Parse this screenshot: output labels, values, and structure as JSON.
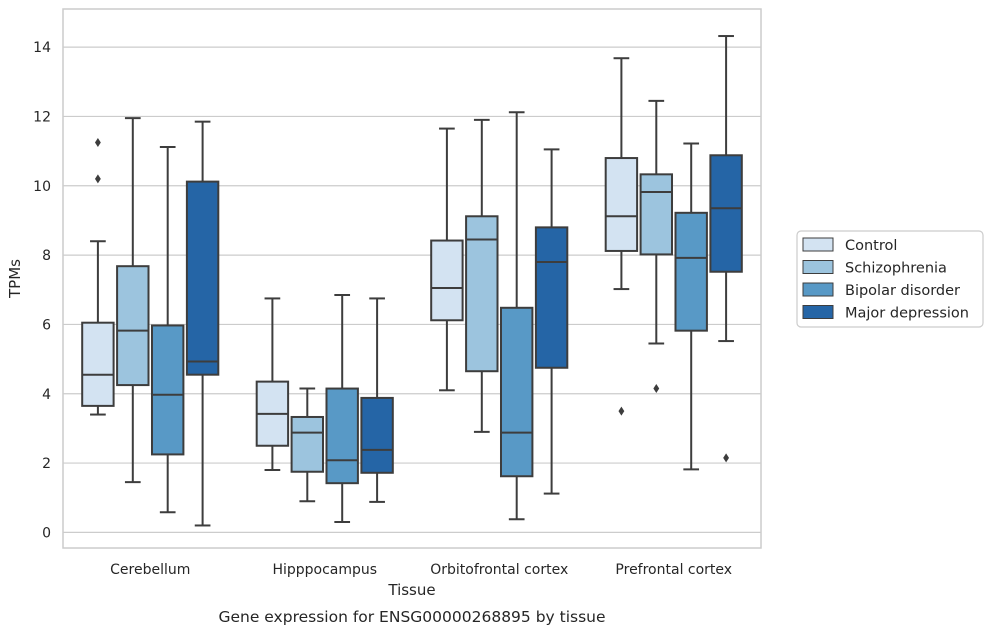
{
  "chart_data": {
    "type": "box",
    "caption": "Gene expression for ENSG00000268895 by tissue",
    "xlabel": "Tissue",
    "ylabel": "TPMs",
    "ylim": [
      -0.45,
      15.1
    ],
    "yticks": [
      0,
      2,
      4,
      6,
      8,
      10,
      12,
      14
    ],
    "grid": true,
    "legend_position": "right",
    "categories": [
      "Cerebellum",
      "Hipppocampus",
      "Orbitofrontal cortex",
      "Prefrontal cortex"
    ],
    "series": [
      {
        "name": "Control",
        "color": "#d3e3f2",
        "boxes": [
          {
            "whisker_low": 3.4,
            "q1": 3.65,
            "median": 4.55,
            "q3": 6.05,
            "whisker_high": 8.4,
            "outliers": [
              10.2,
              11.25
            ]
          },
          {
            "whisker_low": 1.8,
            "q1": 2.5,
            "median": 3.42,
            "q3": 4.35,
            "whisker_high": 6.75,
            "outliers": []
          },
          {
            "whisker_low": 4.1,
            "q1": 6.12,
            "median": 7.05,
            "q3": 8.42,
            "whisker_high": 11.65,
            "outliers": []
          },
          {
            "whisker_low": 7.02,
            "q1": 8.12,
            "median": 9.12,
            "q3": 10.8,
            "whisker_high": 13.68,
            "outliers": [
              3.5
            ]
          }
        ]
      },
      {
        "name": "Schizophrenia",
        "color": "#9cc4de",
        "boxes": [
          {
            "whisker_low": 1.45,
            "q1": 4.25,
            "median": 5.82,
            "q3": 7.68,
            "whisker_high": 11.95,
            "outliers": []
          },
          {
            "whisker_low": 0.9,
            "q1": 1.75,
            "median": 2.88,
            "q3": 3.33,
            "whisker_high": 4.15,
            "outliers": []
          },
          {
            "whisker_low": 2.9,
            "q1": 4.65,
            "median": 8.45,
            "q3": 9.12,
            "whisker_high": 11.9,
            "outliers": []
          },
          {
            "whisker_low": 5.45,
            "q1": 8.02,
            "median": 9.82,
            "q3": 10.33,
            "whisker_high": 12.45,
            "outliers": [
              4.15
            ]
          }
        ]
      },
      {
        "name": "Bipolar disorder",
        "color": "#5899c6",
        "boxes": [
          {
            "whisker_low": 0.58,
            "q1": 2.25,
            "median": 3.97,
            "q3": 5.97,
            "whisker_high": 11.12,
            "outliers": []
          },
          {
            "whisker_low": 0.3,
            "q1": 1.42,
            "median": 2.08,
            "q3": 4.15,
            "whisker_high": 6.85,
            "outliers": []
          },
          {
            "whisker_low": 0.38,
            "q1": 1.62,
            "median": 2.88,
            "q3": 6.48,
            "whisker_high": 12.12,
            "outliers": []
          },
          {
            "whisker_low": 1.82,
            "q1": 5.82,
            "median": 7.92,
            "q3": 9.22,
            "whisker_high": 11.22,
            "outliers": []
          }
        ]
      },
      {
        "name": "Major depression",
        "color": "#2565a6",
        "boxes": [
          {
            "whisker_low": 0.2,
            "q1": 4.55,
            "median": 4.93,
            "q3": 10.12,
            "whisker_high": 11.85,
            "outliers": []
          },
          {
            "whisker_low": 0.88,
            "q1": 1.72,
            "median": 2.38,
            "q3": 3.88,
            "whisker_high": 6.75,
            "outliers": []
          },
          {
            "whisker_low": 1.12,
            "q1": 4.75,
            "median": 7.8,
            "q3": 8.8,
            "whisker_high": 11.05,
            "outliers": []
          },
          {
            "whisker_low": 5.52,
            "q1": 7.52,
            "median": 9.35,
            "q3": 10.88,
            "whisker_high": 14.32,
            "outliers": [
              2.15
            ]
          }
        ]
      }
    ]
  }
}
